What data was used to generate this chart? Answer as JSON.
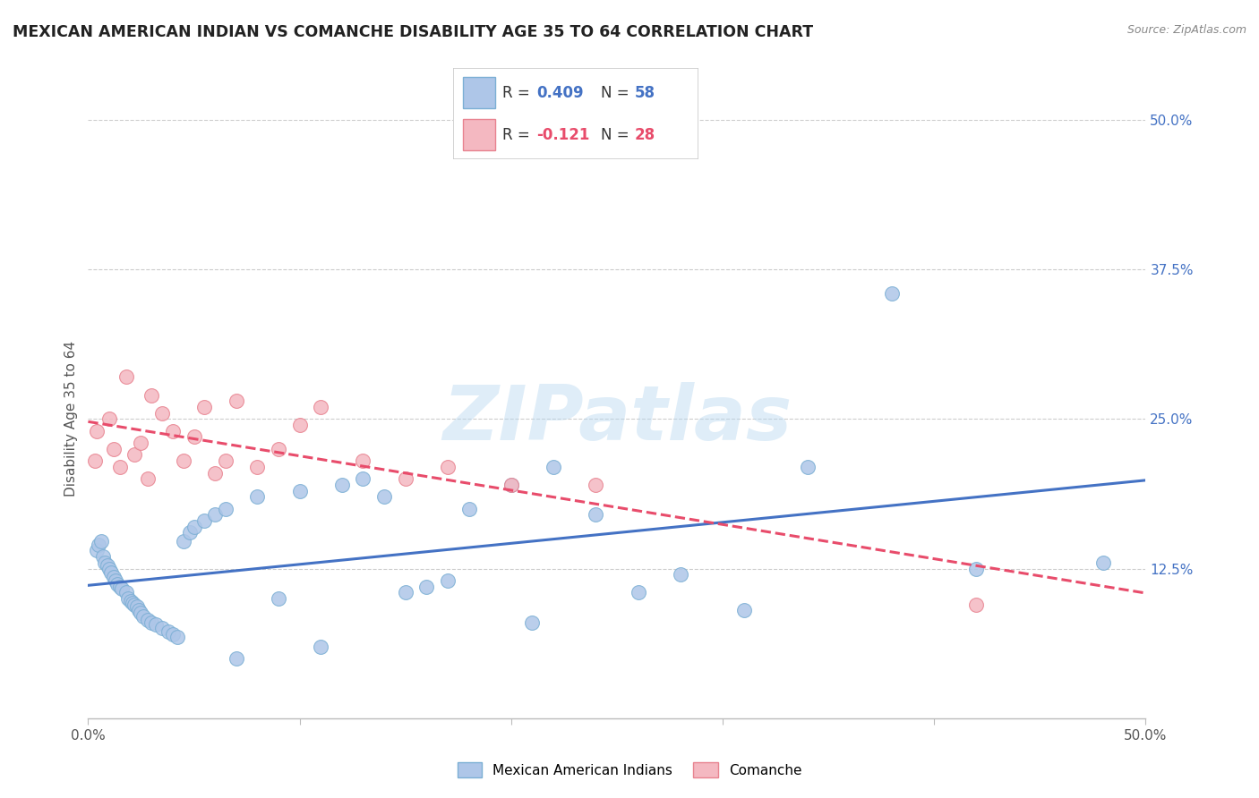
{
  "title": "MEXICAN AMERICAN INDIAN VS COMANCHE DISABILITY AGE 35 TO 64 CORRELATION CHART",
  "source": "Source: ZipAtlas.com",
  "ylabel": "Disability Age 35 to 64",
  "watermark": "ZIPatlas",
  "xlim": [
    0.0,
    0.5
  ],
  "ylim": [
    0.0,
    0.5
  ],
  "yticks_right": [
    0.125,
    0.25,
    0.375,
    0.5
  ],
  "ytick_labels_right": [
    "12.5%",
    "25.0%",
    "37.5%",
    "50.0%"
  ],
  "series1_color": "#aec6e8",
  "series1_edge": "#7bafd4",
  "series1_line_color": "#4472c4",
  "series2_color": "#f4b8c1",
  "series2_edge": "#e8828f",
  "series2_line_color": "#e84c6b",
  "R1": 0.409,
  "N1": 58,
  "R2": -0.121,
  "N2": 28,
  "legend_label1": "Mexican American Indians",
  "legend_label2": "Comanche",
  "grid_color": "#cccccc",
  "background_color": "#ffffff",
  "series1_x": [
    0.004,
    0.005,
    0.006,
    0.007,
    0.008,
    0.009,
    0.01,
    0.011,
    0.012,
    0.013,
    0.014,
    0.015,
    0.016,
    0.018,
    0.019,
    0.02,
    0.021,
    0.022,
    0.023,
    0.024,
    0.025,
    0.026,
    0.028,
    0.03,
    0.032,
    0.035,
    0.038,
    0.04,
    0.042,
    0.045,
    0.048,
    0.05,
    0.055,
    0.06,
    0.065,
    0.07,
    0.08,
    0.09,
    0.1,
    0.11,
    0.12,
    0.13,
    0.14,
    0.15,
    0.16,
    0.17,
    0.18,
    0.2,
    0.21,
    0.22,
    0.24,
    0.26,
    0.28,
    0.31,
    0.34,
    0.38,
    0.42,
    0.48
  ],
  "series1_y": [
    0.14,
    0.145,
    0.148,
    0.135,
    0.13,
    0.128,
    0.125,
    0.122,
    0.118,
    0.115,
    0.112,
    0.11,
    0.108,
    0.105,
    0.1,
    0.098,
    0.096,
    0.095,
    0.093,
    0.09,
    0.088,
    0.085,
    0.082,
    0.08,
    0.078,
    0.075,
    0.072,
    0.07,
    0.068,
    0.148,
    0.155,
    0.16,
    0.165,
    0.17,
    0.175,
    0.05,
    0.185,
    0.1,
    0.19,
    0.06,
    0.195,
    0.2,
    0.185,
    0.105,
    0.11,
    0.115,
    0.175,
    0.195,
    0.08,
    0.21,
    0.17,
    0.105,
    0.12,
    0.09,
    0.21,
    0.355,
    0.125,
    0.13
  ],
  "series2_x": [
    0.003,
    0.004,
    0.01,
    0.012,
    0.015,
    0.018,
    0.022,
    0.025,
    0.028,
    0.03,
    0.035,
    0.04,
    0.045,
    0.05,
    0.055,
    0.06,
    0.065,
    0.07,
    0.08,
    0.09,
    0.1,
    0.11,
    0.13,
    0.15,
    0.17,
    0.2,
    0.24,
    0.42
  ],
  "series2_y": [
    0.215,
    0.24,
    0.25,
    0.225,
    0.21,
    0.285,
    0.22,
    0.23,
    0.2,
    0.27,
    0.255,
    0.24,
    0.215,
    0.235,
    0.26,
    0.205,
    0.215,
    0.265,
    0.21,
    0.225,
    0.245,
    0.26,
    0.215,
    0.2,
    0.21,
    0.195,
    0.195,
    0.095
  ]
}
